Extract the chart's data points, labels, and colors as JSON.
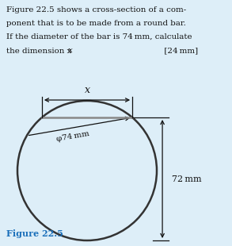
{
  "background_color": "#ddeef8",
  "figure_label": "Figure 22.5",
  "figure_label_color": "#1a6fba",
  "diameter_label": "φ74 mm",
  "dim72_label": "72 mm",
  "dim_x_label": "x",
  "line_color": "#111111",
  "text_color": "#111111",
  "circle_color": "#333333",
  "chord_color": "#888888",
  "title_lines": [
    "Figure 22.5 shows a cross-section of a com-",
    "ponent that is to be made from a round bar.",
    "If the diameter of the bar is 74 mm, calculate",
    "the dimension x                                    [24 mm]"
  ]
}
